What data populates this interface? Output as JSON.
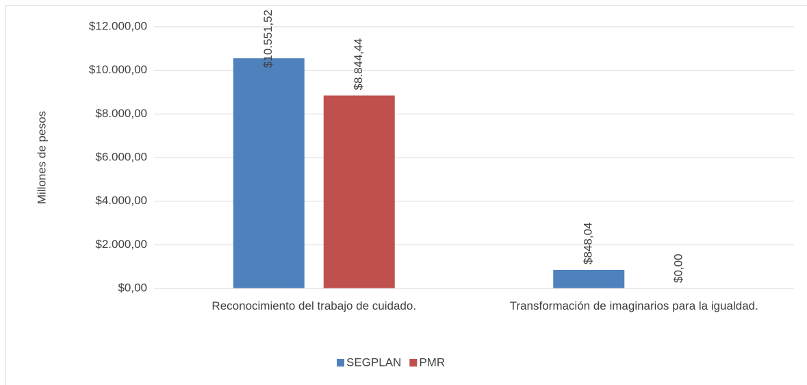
{
  "chart_data": {
    "type": "bar",
    "y_label": "Millones de pesos",
    "categories": [
      "Reconocimiento del trabajo de cuidado.",
      "Transformación de imaginarios para la igualdad."
    ],
    "series": [
      {
        "name": "SEGPLAN",
        "color": "#4f81bd",
        "values": [
          10551.52,
          848.04
        ],
        "value_labels": [
          "$10.551,52",
          "$848,04"
        ]
      },
      {
        "name": "PMR",
        "color": "#c0504d",
        "values": [
          8844.44,
          0
        ],
        "value_labels": [
          "$8.844,44",
          "$0,00"
        ]
      }
    ],
    "ylim": [
      0,
      12000
    ],
    "yticks": [
      {
        "value": 0,
        "label": "$0,00"
      },
      {
        "value": 2000,
        "label": "$2.000,00"
      },
      {
        "value": 4000,
        "label": "$4.000,00"
      },
      {
        "value": 6000,
        "label": "$6.000,00"
      },
      {
        "value": 8000,
        "label": "$8.000,00"
      },
      {
        "value": 10000,
        "label": "$10.000,00"
      },
      {
        "value": 12000,
        "label": "$12.000,00"
      }
    ],
    "grid": true,
    "legend": "bottom"
  }
}
